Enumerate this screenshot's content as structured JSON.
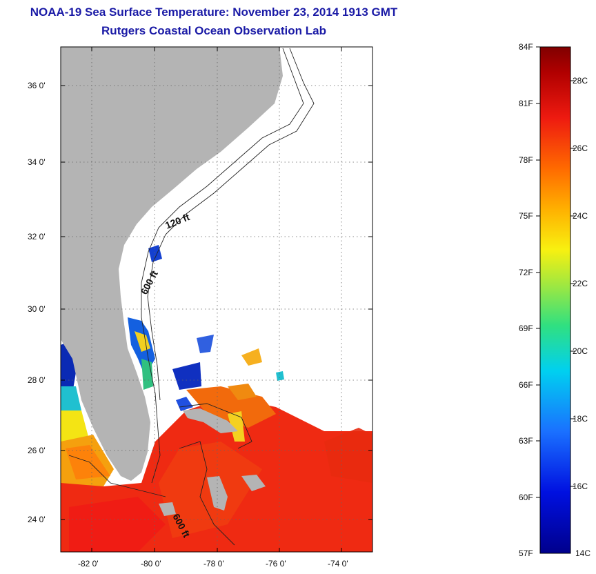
{
  "title": "NOAA-19 Sea Surface Temperature:  November 23, 2014 1913 GMT",
  "subtitle": "Rutgers Coastal Ocean Observation Lab",
  "map": {
    "lat_ticks": [
      "36 0'",
      "34 0'",
      "32 0'",
      "30 0'",
      "28 0'",
      "26 0'",
      "24 0'"
    ],
    "lon_ticks": [
      "-82 0'",
      "-80 0'",
      "-78 0'",
      "-76 0'",
      "-74 0'"
    ],
    "isobaths": [
      "120 ft",
      "600 ft",
      "600 ft"
    ],
    "land_color": "#b4b4b4",
    "grid": "dotted"
  },
  "colorbar": {
    "fahrenheit": [
      "84F",
      "81F",
      "78F",
      "75F",
      "72F",
      "69F",
      "66F",
      "63F",
      "60F",
      "57F"
    ],
    "celsius": [
      "28C",
      "26C",
      "24C",
      "22C",
      "20C",
      "18C",
      "16C",
      "14C"
    ],
    "range_f": [
      57,
      84
    ],
    "range_c": [
      14,
      29
    ]
  }
}
